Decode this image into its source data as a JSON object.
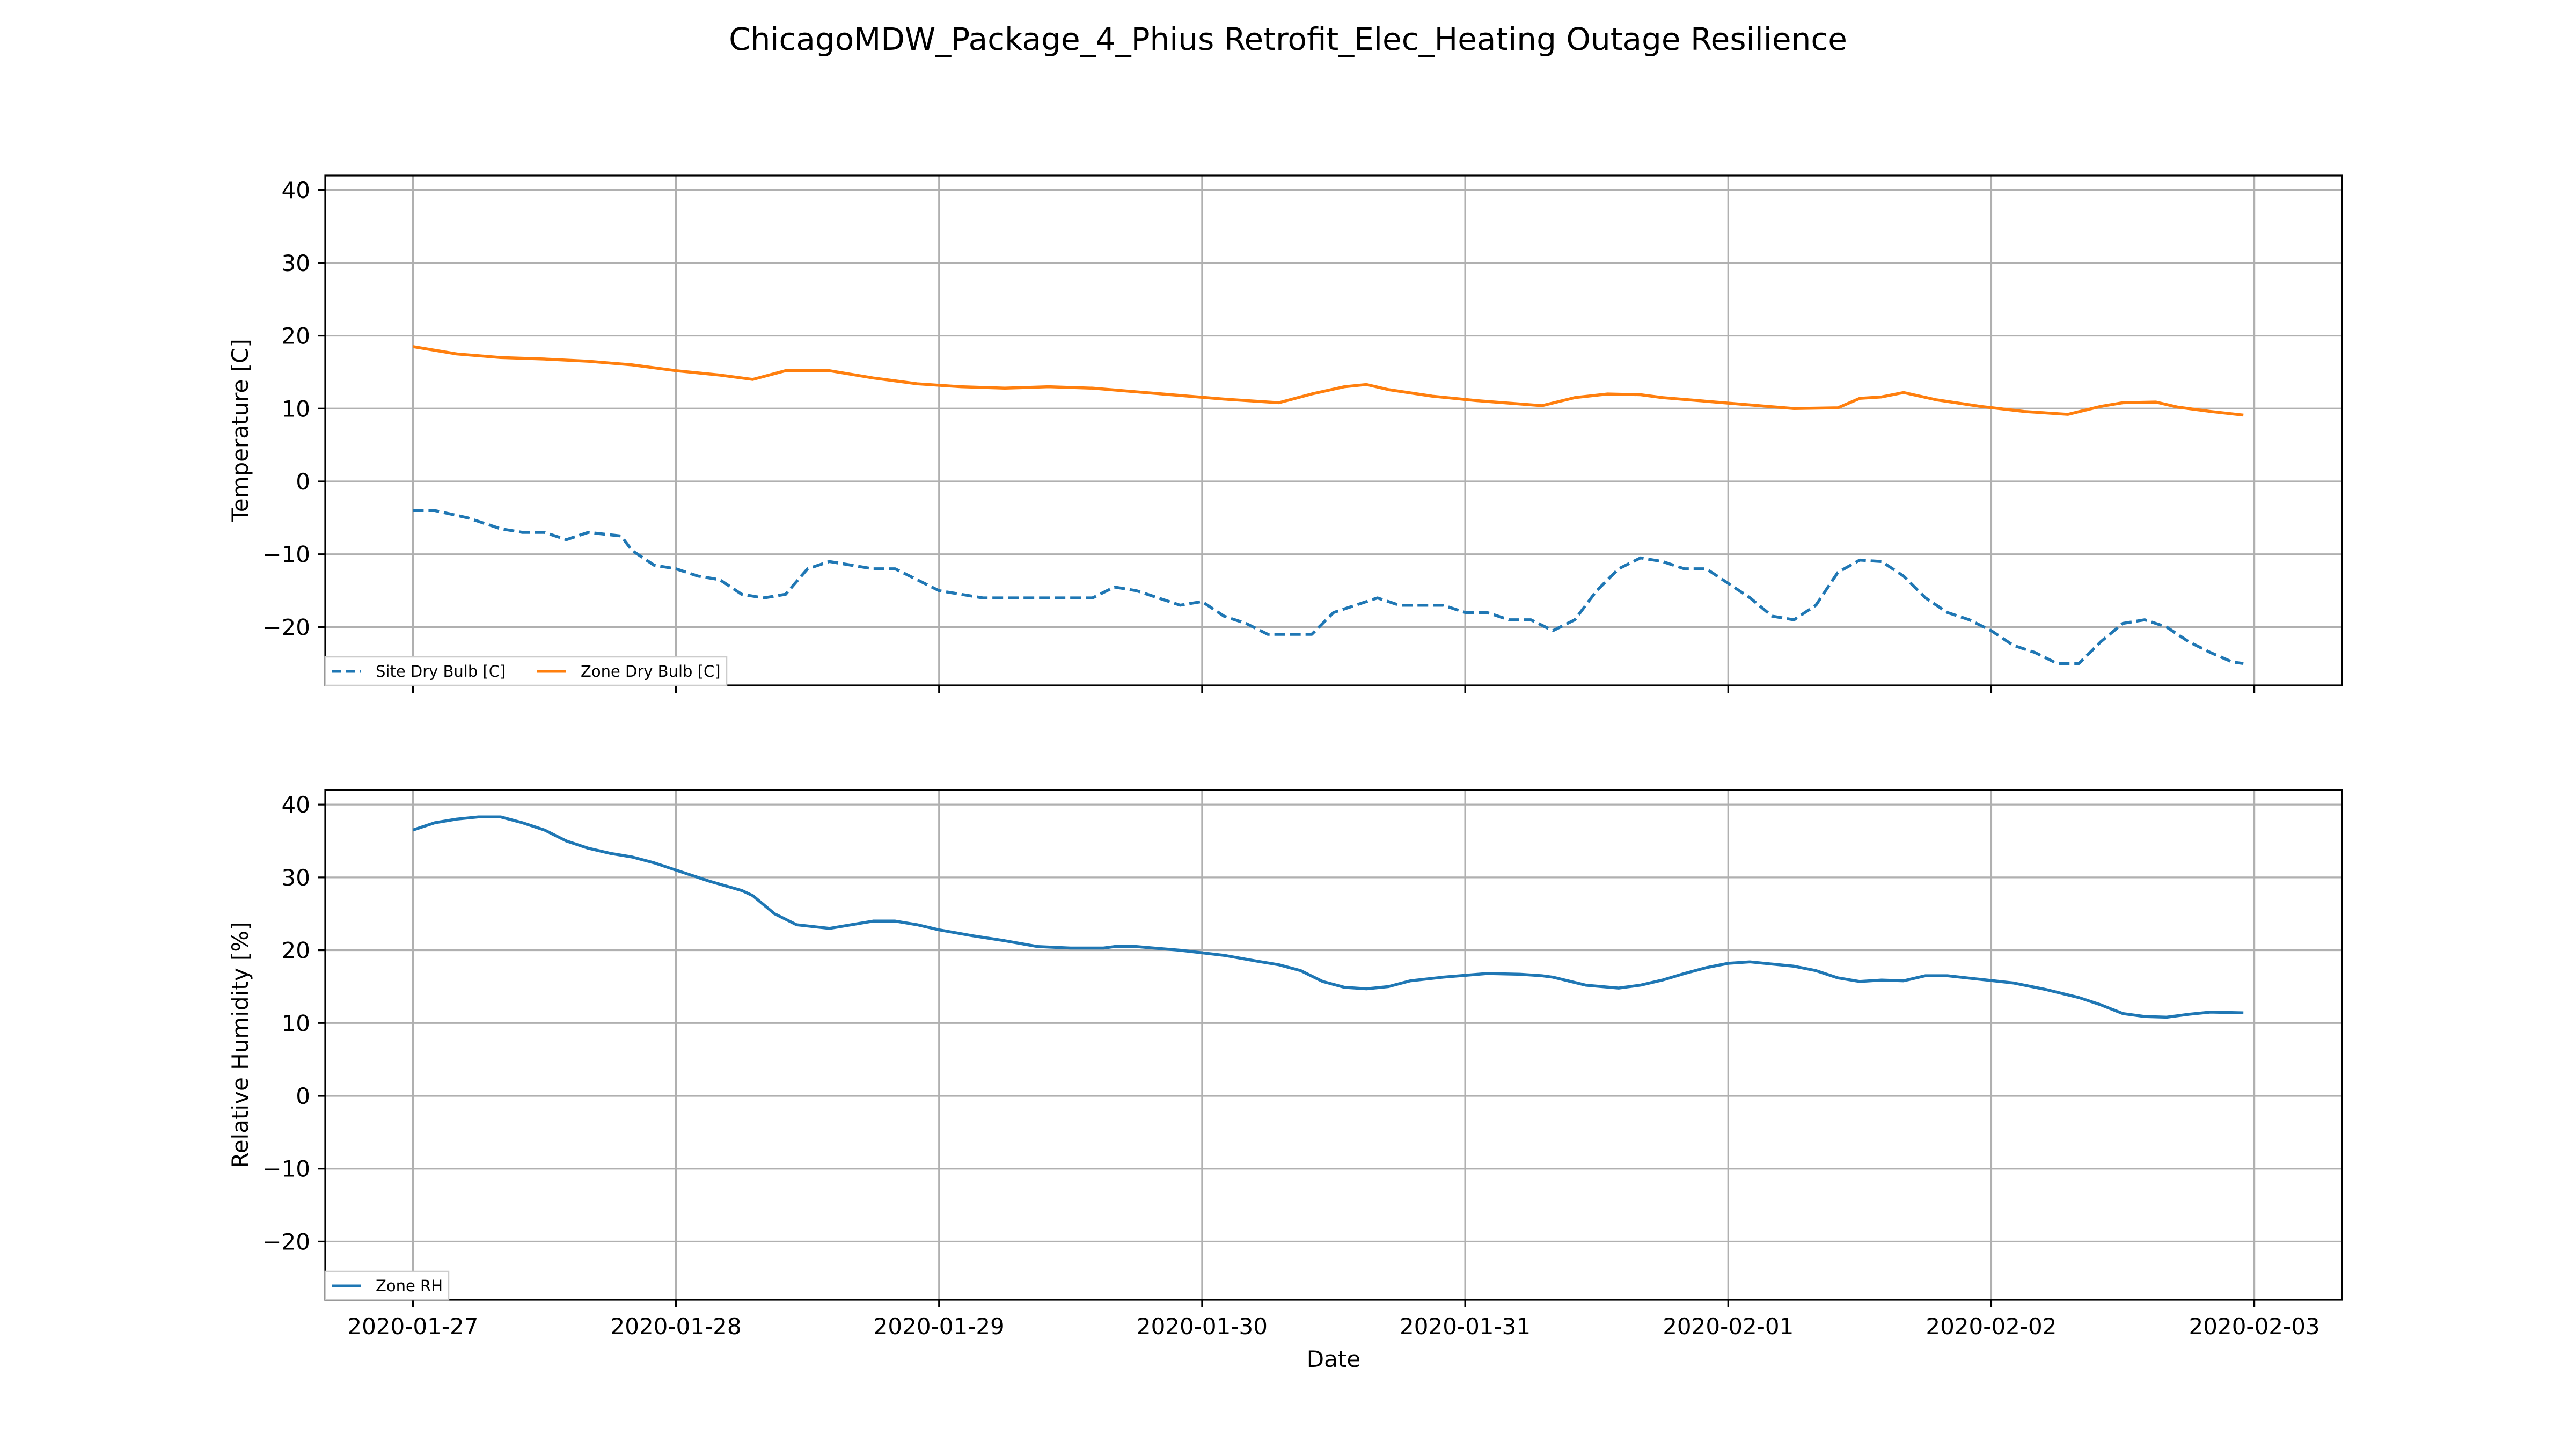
{
  "figure": {
    "title": "ChicagoMDW_Package_4_Phius Retrofit_Elec_Heating Outage Resilience",
    "xlabel": "Date"
  },
  "colors": {
    "site_dry_bulb": "#1f77b4",
    "zone_dry_bulb": "#ff7f0e",
    "zone_rh": "#1f77b4",
    "grid": "#b0b0b0"
  },
  "chart_data": [
    {
      "type": "line",
      "title": "",
      "xlabel": "",
      "ylabel": "Temperature [C]",
      "x_type": "date",
      "xlim": [
        "2020-01-26 16:00",
        "2020-02-03 08:00"
      ],
      "ylim": [
        -28,
        42
      ],
      "yticks": [
        40,
        30,
        20,
        10,
        0,
        -10,
        -20
      ],
      "ytick_labels": [
        "40",
        "30",
        "20",
        "10",
        "0",
        "−10",
        "−20"
      ],
      "grid": true,
      "legend_loc": "lower left",
      "series": [
        {
          "name": "Site Dry Bulb [C]",
          "color": "#1f77b4",
          "style": "dashed",
          "x": [
            "2020-01-27 00:00",
            "2020-01-27 02:00",
            "2020-01-27 05:00",
            "2020-01-27 08:00",
            "2020-01-27 10:00",
            "2020-01-27 12:00",
            "2020-01-27 14:00",
            "2020-01-27 16:00",
            "2020-01-27 19:00",
            "2020-01-27 20:00",
            "2020-01-27 22:00",
            "2020-01-28 00:00",
            "2020-01-28 02:00",
            "2020-01-28 04:00",
            "2020-01-28 06:00",
            "2020-01-28 08:00",
            "2020-01-28 10:00",
            "2020-01-28 12:00",
            "2020-01-28 14:00",
            "2020-01-28 16:00",
            "2020-01-28 18:00",
            "2020-01-28 20:00",
            "2020-01-28 22:00",
            "2020-01-29 00:00",
            "2020-01-29 04:00",
            "2020-01-29 08:00",
            "2020-01-29 12:00",
            "2020-01-29 14:00",
            "2020-01-29 16:00",
            "2020-01-29 18:00",
            "2020-01-29 20:00",
            "2020-01-29 22:00",
            "2020-01-30 00:00",
            "2020-01-30 02:00",
            "2020-01-30 04:00",
            "2020-01-30 06:00",
            "2020-01-30 08:00",
            "2020-01-30 10:00",
            "2020-01-30 12:00",
            "2020-01-30 14:00",
            "2020-01-30 16:00",
            "2020-01-30 18:00",
            "2020-01-30 20:00",
            "2020-01-30 22:00",
            "2020-01-31 00:00",
            "2020-01-31 02:00",
            "2020-01-31 04:00",
            "2020-01-31 06:00",
            "2020-01-31 08:00",
            "2020-01-31 10:00",
            "2020-01-31 12:00",
            "2020-01-31 14:00",
            "2020-01-31 16:00",
            "2020-01-31 18:00",
            "2020-01-31 20:00",
            "2020-01-31 22:00",
            "2020-02-01 00:00",
            "2020-02-01 02:00",
            "2020-02-01 04:00",
            "2020-02-01 06:00",
            "2020-02-01 08:00",
            "2020-02-01 10:00",
            "2020-02-01 12:00",
            "2020-02-01 14:00",
            "2020-02-01 16:00",
            "2020-02-01 18:00",
            "2020-02-01 20:00",
            "2020-02-01 22:00",
            "2020-02-02 00:00",
            "2020-02-02 02:00",
            "2020-02-02 04:00",
            "2020-02-02 06:00",
            "2020-02-02 08:00",
            "2020-02-02 10:00",
            "2020-02-02 12:00",
            "2020-02-02 14:00",
            "2020-02-02 16:00",
            "2020-02-02 18:00",
            "2020-02-02 20:00",
            "2020-02-02 22:00",
            "2020-02-02 23:00"
          ],
          "values": [
            -4,
            -4,
            -5,
            -6.5,
            -7,
            -7,
            -8,
            -7,
            -7.5,
            -9.5,
            -11.5,
            -12,
            -13,
            -13.5,
            -15.5,
            -16,
            -15.5,
            -12,
            -11,
            -11.5,
            -12,
            -12,
            -13.5,
            -15,
            -16,
            -16,
            -16,
            -16,
            -14.5,
            -15,
            -16,
            -17,
            -16.5,
            -18.5,
            -19.5,
            -21,
            -21,
            -21,
            -18,
            -17,
            -16,
            -17,
            -17,
            -17,
            -18,
            -18,
            -19,
            -19,
            -20.5,
            -19,
            -15,
            -12,
            -10.5,
            -11,
            -12,
            -12,
            -14,
            -16,
            -18.5,
            -19,
            -17,
            -12.5,
            -10.8,
            -11,
            -13,
            -16,
            -18,
            -19,
            -20.5,
            -22.5,
            -23.5,
            -25,
            -25,
            -22,
            -19.5,
            -19,
            -20,
            -22,
            -23.5,
            -24.8,
            -25
          ]
        },
        {
          "name": "Zone Dry Bulb [C]",
          "color": "#ff7f0e",
          "style": "solid",
          "x": [
            "2020-01-27 00:00",
            "2020-01-27 04:00",
            "2020-01-27 08:00",
            "2020-01-27 12:00",
            "2020-01-27 16:00",
            "2020-01-27 20:00",
            "2020-01-28 00:00",
            "2020-01-28 04:00",
            "2020-01-28 07:00",
            "2020-01-28 10:00",
            "2020-01-28 14:00",
            "2020-01-28 18:00",
            "2020-01-28 22:00",
            "2020-01-29 02:00",
            "2020-01-29 06:00",
            "2020-01-29 10:00",
            "2020-01-29 14:00",
            "2020-01-29 18:00",
            "2020-01-29 22:00",
            "2020-01-30 02:00",
            "2020-01-30 07:00",
            "2020-01-30 10:00",
            "2020-01-30 13:00",
            "2020-01-30 15:00",
            "2020-01-30 17:00",
            "2020-01-30 21:00",
            "2020-01-31 01:00",
            "2020-01-31 07:00",
            "2020-01-31 10:00",
            "2020-01-31 13:00",
            "2020-01-31 16:00",
            "2020-01-31 18:00",
            "2020-01-31 22:00",
            "2020-02-01 02:00",
            "2020-02-01 06:00",
            "2020-02-01 10:00",
            "2020-02-01 12:00",
            "2020-02-01 14:00",
            "2020-02-01 16:00",
            "2020-02-01 19:00",
            "2020-02-01 23:00",
            "2020-02-02 03:00",
            "2020-02-02 07:00",
            "2020-02-02 10:00",
            "2020-02-02 12:00",
            "2020-02-02 15:00",
            "2020-02-02 17:00",
            "2020-02-02 20:00",
            "2020-02-02 23:00"
          ],
          "values": [
            18.5,
            17.5,
            17,
            16.8,
            16.5,
            16,
            15.2,
            14.6,
            14,
            15.2,
            15.2,
            14.2,
            13.4,
            13,
            12.8,
            13,
            12.8,
            12.3,
            11.8,
            11.3,
            10.8,
            12,
            13,
            13.3,
            12.6,
            11.7,
            11.1,
            10.4,
            11.5,
            12,
            11.9,
            11.5,
            11,
            10.5,
            10,
            10.1,
            11.4,
            11.6,
            12.2,
            11.2,
            10.3,
            9.6,
            9.2,
            10.3,
            10.8,
            10.9,
            10.2,
            9.6,
            9.1
          ]
        }
      ]
    },
    {
      "type": "line",
      "title": "",
      "xlabel": "Date",
      "ylabel": "Relative Humidity [%]",
      "x_type": "date",
      "xlim": [
        "2020-01-26 16:00",
        "2020-02-03 08:00"
      ],
      "ylim": [
        -28,
        42
      ],
      "yticks": [
        40,
        30,
        20,
        10,
        0,
        -10,
        -20
      ],
      "ytick_labels": [
        "40",
        "30",
        "20",
        "10",
        "0",
        "−10",
        "−20"
      ],
      "xticks": [
        "2020-01-27",
        "2020-01-28",
        "2020-01-29",
        "2020-01-30",
        "2020-01-31",
        "2020-02-01",
        "2020-02-02",
        "2020-02-03"
      ],
      "grid": true,
      "legend_loc": "lower left",
      "series": [
        {
          "name": "Zone RH",
          "color": "#1f77b4",
          "style": "solid",
          "x": [
            "2020-01-27 00:00",
            "2020-01-27 02:00",
            "2020-01-27 04:00",
            "2020-01-27 06:00",
            "2020-01-27 08:00",
            "2020-01-27 10:00",
            "2020-01-27 12:00",
            "2020-01-27 14:00",
            "2020-01-27 16:00",
            "2020-01-27 18:00",
            "2020-01-27 20:00",
            "2020-01-27 22:00",
            "2020-01-28 00:00",
            "2020-01-28 03:00",
            "2020-01-28 06:00",
            "2020-01-28 07:00",
            "2020-01-28 09:00",
            "2020-01-28 11:00",
            "2020-01-28 14:00",
            "2020-01-28 16:00",
            "2020-01-28 18:00",
            "2020-01-28 20:00",
            "2020-01-28 22:00",
            "2020-01-29 00:00",
            "2020-01-29 03:00",
            "2020-01-29 06:00",
            "2020-01-29 09:00",
            "2020-01-29 12:00",
            "2020-01-29 15:00",
            "2020-01-29 16:00",
            "2020-01-29 18:00",
            "2020-01-29 22:00",
            "2020-01-30 02:00",
            "2020-01-30 05:00",
            "2020-01-30 07:00",
            "2020-01-30 09:00",
            "2020-01-30 11:00",
            "2020-01-30 13:00",
            "2020-01-30 15:00",
            "2020-01-30 17:00",
            "2020-01-30 19:00",
            "2020-01-30 22:00",
            "2020-01-31 02:00",
            "2020-01-31 05:00",
            "2020-01-31 07:00",
            "2020-01-31 08:00",
            "2020-01-31 11:00",
            "2020-01-31 14:00",
            "2020-01-31 16:00",
            "2020-01-31 18:00",
            "2020-01-31 20:00",
            "2020-01-31 22:00",
            "2020-02-01 00:00",
            "2020-02-01 02:00",
            "2020-02-01 06:00",
            "2020-02-01 08:00",
            "2020-02-01 10:00",
            "2020-02-01 12:00",
            "2020-02-01 14:00",
            "2020-02-01 16:00",
            "2020-02-01 18:00",
            "2020-02-01 20:00",
            "2020-02-01 23:00",
            "2020-02-02 02:00",
            "2020-02-02 05:00",
            "2020-02-02 08:00",
            "2020-02-02 10:00",
            "2020-02-02 12:00",
            "2020-02-02 14:00",
            "2020-02-02 16:00",
            "2020-02-02 18:00",
            "2020-02-02 20:00",
            "2020-02-02 23:00"
          ],
          "values": [
            36.5,
            37.5,
            38,
            38.3,
            38.3,
            37.5,
            36.5,
            35,
            34,
            33.3,
            32.8,
            32,
            31,
            29.5,
            28.2,
            27.5,
            25,
            23.5,
            23,
            23.5,
            24,
            24,
            23.5,
            22.8,
            22,
            21.3,
            20.5,
            20.3,
            20.3,
            20.5,
            20.5,
            20,
            19.3,
            18.5,
            18,
            17.2,
            15.7,
            14.9,
            14.7,
            15,
            15.8,
            16.3,
            16.8,
            16.7,
            16.5,
            16.3,
            15.2,
            14.8,
            15.2,
            15.9,
            16.8,
            17.6,
            18.2,
            18.4,
            17.8,
            17.2,
            16.2,
            15.7,
            15.9,
            15.8,
            16.5,
            16.5,
            16,
            15.5,
            14.6,
            13.5,
            12.5,
            11.3,
            10.9,
            10.8,
            11.2,
            11.5,
            11.4
          ]
        }
      ]
    }
  ],
  "legend": {
    "site_label": "Site Dry Bulb [C]",
    "zone_label": "Zone Dry Bulb [C]",
    "rh_label": "Zone RH"
  }
}
